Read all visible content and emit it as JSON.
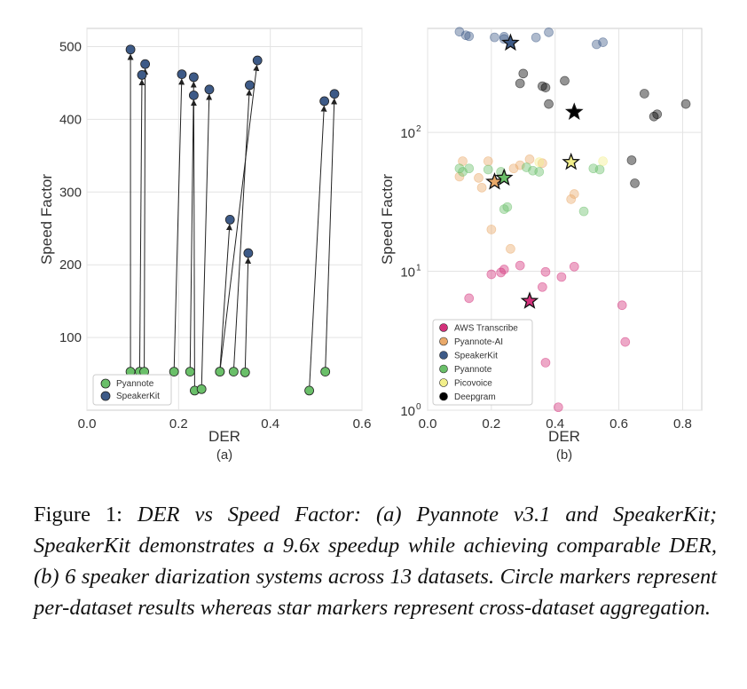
{
  "chart_data": [
    {
      "type": "scatter",
      "panel_label": "(a)",
      "xlabel": "DER",
      "ylabel": "Speed Factor",
      "xlim": [
        0.0,
        0.6
      ],
      "ylim": [
        0,
        525
      ],
      "xticks": [
        0.0,
        0.2,
        0.4,
        0.6
      ],
      "xtick_labels": [
        "0.0",
        "0.2",
        "0.4",
        "0.6"
      ],
      "yticks": [
        100,
        200,
        300,
        400,
        500
      ],
      "ytick_labels": [
        "100",
        "200",
        "300",
        "400",
        "500"
      ],
      "grid": true,
      "legend_position": "bottom-left",
      "series": [
        {
          "name": "Pyannote",
          "color": "#6abf69",
          "marker": "circle"
        },
        {
          "name": "SpeakerKit",
          "color": "#3d5a87",
          "marker": "circle"
        }
      ],
      "pairs": [
        {
          "from": [
            0.095,
            53
          ],
          "to": [
            0.095,
            496
          ]
        },
        {
          "from": [
            0.115,
            53
          ],
          "to": [
            0.12,
            461
          ]
        },
        {
          "from": [
            0.125,
            53
          ],
          "to": [
            0.127,
            476
          ]
        },
        {
          "from": [
            0.19,
            53
          ],
          "to": [
            0.207,
            462
          ]
        },
        {
          "from": [
            0.225,
            53
          ],
          "to": [
            0.233,
            458
          ]
        },
        {
          "from": [
            0.235,
            27
          ],
          "to": [
            0.233,
            433
          ]
        },
        {
          "from": [
            0.25,
            29
          ],
          "to": [
            0.267,
            441
          ]
        },
        {
          "from": [
            0.29,
            53
          ],
          "to": [
            0.312,
            262
          ]
        },
        {
          "from": [
            0.32,
            53
          ],
          "to": [
            0.355,
            447
          ]
        },
        {
          "from": [
            0.345,
            52
          ],
          "to": [
            0.352,
            216
          ]
        },
        {
          "from": [
            0.29,
            53
          ],
          "to": [
            0.372,
            481
          ]
        },
        {
          "from": [
            0.485,
            27
          ],
          "to": [
            0.518,
            425
          ]
        },
        {
          "from": [
            0.52,
            53
          ],
          "to": [
            0.54,
            435
          ]
        }
      ]
    },
    {
      "type": "scatter",
      "panel_label": "(b)",
      "xlabel": "DER",
      "ylabel": "Speed Factor",
      "xlim": [
        0.0,
        0.86
      ],
      "ylim": [
        1,
        560
      ],
      "yscale": "log",
      "xticks": [
        0.0,
        0.2,
        0.4,
        0.6,
        0.8
      ],
      "xtick_labels": [
        "0.0",
        "0.2",
        "0.4",
        "0.6",
        "0.8"
      ],
      "yticks": [
        1,
        10,
        100
      ],
      "ytick_labels": [
        "10",
        "10",
        "10"
      ],
      "ytick_exponents": [
        "0",
        "1",
        "2"
      ],
      "grid": true,
      "legend_position": "bottom-left",
      "series": [
        {
          "name": "AWS Transcribe",
          "color": "#d3307a",
          "points": [
            [
              0.13,
              6.4
            ],
            [
              0.2,
              9.5
            ],
            [
              0.23,
              9.8
            ],
            [
              0.24,
              10.3
            ],
            [
              0.29,
              11.0
            ],
            [
              0.37,
              9.9
            ],
            [
              0.36,
              7.7
            ],
            [
              0.42,
              9.1
            ],
            [
              0.46,
              10.8
            ],
            [
              0.37,
              2.2
            ],
            [
              0.41,
              1.05
            ],
            [
              0.61,
              5.7
            ],
            [
              0.62,
              3.1
            ]
          ],
          "aggregate": [
            0.32,
            6.1
          ]
        },
        {
          "name": "Pyannote-AI",
          "color": "#e9a96a",
          "points": [
            [
              0.1,
              48
            ],
            [
              0.11,
              62
            ],
            [
              0.16,
              47
            ],
            [
              0.17,
              40
            ],
            [
              0.19,
              62
            ],
            [
              0.27,
              55
            ],
            [
              0.29,
              58
            ],
            [
              0.32,
              64
            ],
            [
              0.36,
              60
            ],
            [
              0.2,
              20
            ],
            [
              0.26,
              14.5
            ],
            [
              0.46,
              36
            ],
            [
              0.45,
              33
            ]
          ],
          "aggregate": [
            0.21,
            44
          ]
        },
        {
          "name": "SpeakerKit",
          "color": "#3d5a87",
          "points": [
            [
              0.1,
              530
            ],
            [
              0.12,
              500
            ],
            [
              0.13,
              492
            ],
            [
              0.21,
              483
            ],
            [
              0.24,
              470
            ],
            [
              0.24,
              488
            ],
            [
              0.34,
              482
            ],
            [
              0.38,
              525
            ],
            [
              0.53,
              430
            ],
            [
              0.55,
              445
            ]
          ],
          "aggregate": [
            0.26,
            440
          ]
        },
        {
          "name": "Pyannote",
          "color": "#6abf69",
          "points": [
            [
              0.1,
              55
            ],
            [
              0.11,
              52
            ],
            [
              0.13,
              55
            ],
            [
              0.19,
              54
            ],
            [
              0.23,
              52
            ],
            [
              0.24,
              28
            ],
            [
              0.25,
              29
            ],
            [
              0.31,
              56
            ],
            [
              0.33,
              53
            ],
            [
              0.35,
              52
            ],
            [
              0.49,
              27
            ],
            [
              0.52,
              55
            ],
            [
              0.54,
              54
            ]
          ],
          "aggregate": [
            0.24,
            47
          ]
        },
        {
          "name": "Picovoice",
          "color": "#f2ef8a",
          "points": [
            [
              0.35,
              61
            ],
            [
              0.55,
              62
            ]
          ],
          "aggregate": [
            0.45,
            61
          ]
        },
        {
          "name": "Deepgram",
          "color": "#000000",
          "points": [
            [
              0.29,
              225
            ],
            [
              0.3,
              265
            ],
            [
              0.36,
              215
            ],
            [
              0.37,
              210
            ],
            [
              0.38,
              160
            ],
            [
              0.43,
              235
            ],
            [
              0.68,
              190
            ],
            [
              0.71,
              130
            ],
            [
              0.72,
              135
            ],
            [
              0.81,
              160
            ],
            [
              0.64,
              63
            ],
            [
              0.65,
              43
            ]
          ],
          "aggregate": [
            0.46,
            140
          ]
        }
      ]
    }
  ],
  "caption": {
    "prefix": "Figure 1:",
    "text": "DER vs Speed Factor: (a) Pyannote v3.1 and SpeakerKit; SpeakerKit demonstrates a 9.6x speedup while achieving comparable DER, (b) 6 speaker diarization systems across 13 datasets. Circle markers represent per-dataset results whereas star markers represent cross-dataset aggregation."
  }
}
